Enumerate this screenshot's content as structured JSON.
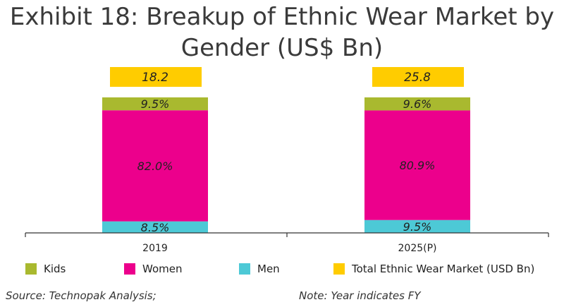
{
  "title": "Exhibit 18: Breakup of Ethnic Wear Market by Gender (US$ Bn)",
  "chart_data": {
    "type": "bar",
    "stacked": true,
    "categories": [
      "2019",
      "2025(P)"
    ],
    "series": [
      {
        "name": "Men",
        "values": [
          8.5,
          9.5
        ],
        "labels": [
          "8.5%",
          "9.5%"
        ],
        "color": "#4dc9d6"
      },
      {
        "name": "Women",
        "values": [
          82.0,
          80.9
        ],
        "labels": [
          "82.0%",
          "80.9%"
        ],
        "color": "#ec008c"
      },
      {
        "name": "Kids",
        "values": [
          9.5,
          9.6
        ],
        "labels": [
          "9.5%",
          "9.6%"
        ],
        "color": "#a9b92f"
      }
    ],
    "totals": {
      "name": "Total Ethnic Wear Market (USD Bn)",
      "values": [
        18.2,
        25.8
      ],
      "labels": [
        "18.2",
        "25.8"
      ],
      "color": "#ffcc00"
    },
    "legend_order": [
      "Kids",
      "Women",
      "Men",
      "Total Ethnic Wear Market (USD Bn)"
    ],
    "legend_position": "bottom",
    "grid": false
  },
  "footnotes": {
    "source": "Source: Technopak Analysis;",
    "note": "Note: Year indicates FY"
  }
}
